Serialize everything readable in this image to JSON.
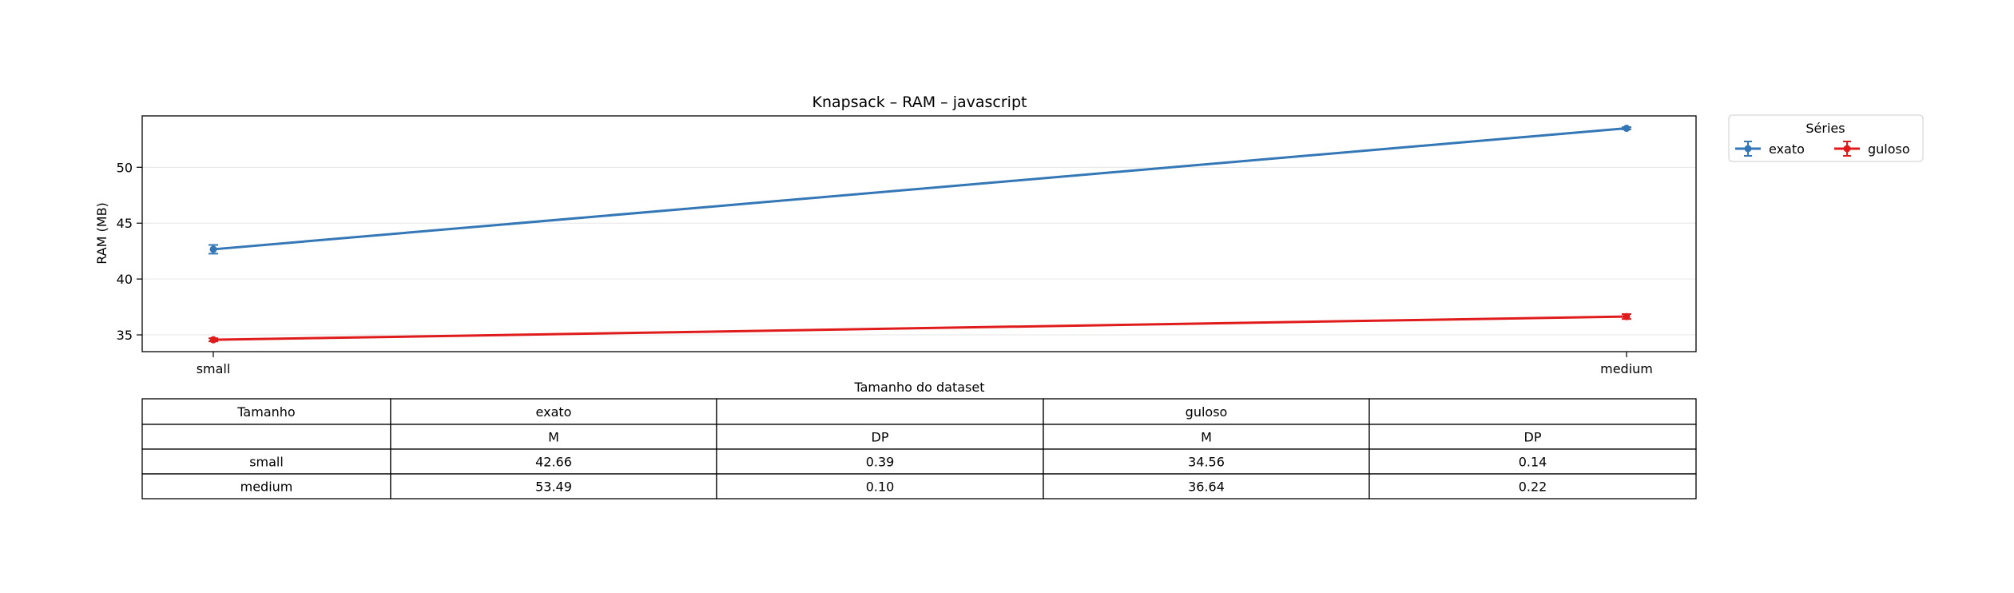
{
  "chart_data": {
    "type": "line",
    "title": "Knapsack – RAM – javascript",
    "xlabel": "Tamanho do dataset",
    "ylabel": "RAM (MB)",
    "categories": [
      "small",
      "medium"
    ],
    "ylim": [
      33.5,
      54.6
    ],
    "yticks": [
      35,
      40,
      45,
      50
    ],
    "grid": "horizontal",
    "legend": {
      "title": "Séries",
      "placement": "outside top-right",
      "columns": 2
    },
    "series": [
      {
        "name": "exato",
        "color": "#3477b6",
        "values": [
          42.66,
          53.49
        ],
        "errors": [
          0.39,
          0.1
        ]
      },
      {
        "name": "guloso",
        "color": "#e01b1b",
        "values": [
          34.56,
          36.64
        ],
        "errors": [
          0.14,
          0.22
        ]
      }
    ]
  },
  "table": {
    "header1": [
      "Tamanho",
      "exato",
      "",
      "guloso",
      ""
    ],
    "header2": [
      "",
      "M",
      "DP",
      "M",
      "DP"
    ],
    "rows": [
      [
        "small",
        "42.66",
        "0.39",
        "34.56",
        "0.14"
      ],
      [
        "medium",
        "53.49",
        "0.10",
        "36.64",
        "0.22"
      ]
    ]
  }
}
